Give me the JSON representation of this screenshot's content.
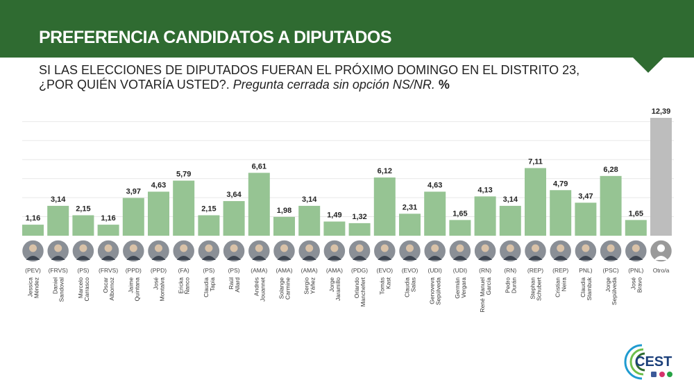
{
  "header": {
    "title": "PREFERENCIA CANDIDATOS A DIPUTADOS",
    "question": "SI LAS ELECCIONES DE DIPUTADOS FUERAN EL PRÓXIMO DOMINGO EN EL DISTRITO 23, ¿POR QUIÉN VOTARÍA USTED?.",
    "question_note": "Pregunta cerrada sin opción NS/NR.",
    "unit": "%"
  },
  "colors": {
    "banner": "#2f6b31",
    "bar": "#96c493",
    "bar_other": "#bdbdbd",
    "grid": "#e8e8e8"
  },
  "logo": {
    "text": "CEST"
  },
  "chart_data": {
    "type": "bar",
    "title": "PREFERENCIA CANDIDATOS A DIPUTADOS",
    "ylim": [
      0,
      12.39
    ],
    "grid": true,
    "categories": [
      "Jessica Méndez",
      "Daniel Sandoval",
      "Marcelo Carrasco",
      "Oscar Albornoz",
      "Jaime Quintana",
      "José Montalva",
      "Ericka Ñanco",
      "Claudia Tapia",
      "Raúl Allard",
      "Andrés Jouannet",
      "Solange Carmine",
      "Sergio Yáñez",
      "Jorge Jaramillo",
      "Orlando Manchefert",
      "Tomás Kast",
      "Claudia Salas",
      "Genoveva Sepúlveda",
      "Germán Vergara",
      "René Manuel García",
      "Pedro Durán",
      "Stephan Schubert",
      "Cristian Neira",
      "Claudia Stambuk",
      "Jorge Sepúlveda",
      "José Bravo",
      "Otro/a"
    ],
    "parties": [
      "(PEV)",
      "(FRVS)",
      "(PS)",
      "(FRVS)",
      "(PPD)",
      "(PPD)",
      "(FA)",
      "(PS)",
      "(PS)",
      "(AMA)",
      "(AMA)",
      "(AMA)",
      "(AMA)",
      "(PDG)",
      "(EVO)",
      "(EVO)",
      "(UDI)",
      "(UDI)",
      "(RN)",
      "(RN)",
      "(REP)",
      "(REP)",
      "PNL)",
      "(PSC)",
      "(PNL)",
      ""
    ],
    "values": [
      1.16,
      3.14,
      2.15,
      1.16,
      3.97,
      4.63,
      5.79,
      2.15,
      3.64,
      6.61,
      1.98,
      3.14,
      1.49,
      1.32,
      6.12,
      2.31,
      4.63,
      1.65,
      4.13,
      3.14,
      7.11,
      4.79,
      3.47,
      6.28,
      1.65,
      12.39
    ],
    "value_labels": [
      "1,16",
      "3,14",
      "2,15",
      "1,16",
      "3,97",
      "4,63",
      "5,79",
      "2,15",
      "3,64",
      "6,61",
      "1,98",
      "3,14",
      "1,49",
      "1,32",
      "6,12",
      "2,31",
      "4,63",
      "1,65",
      "4,13",
      "3,14",
      "7,11",
      "4,79",
      "3,47",
      "6,28",
      "1,65",
      "12,39"
    ]
  }
}
